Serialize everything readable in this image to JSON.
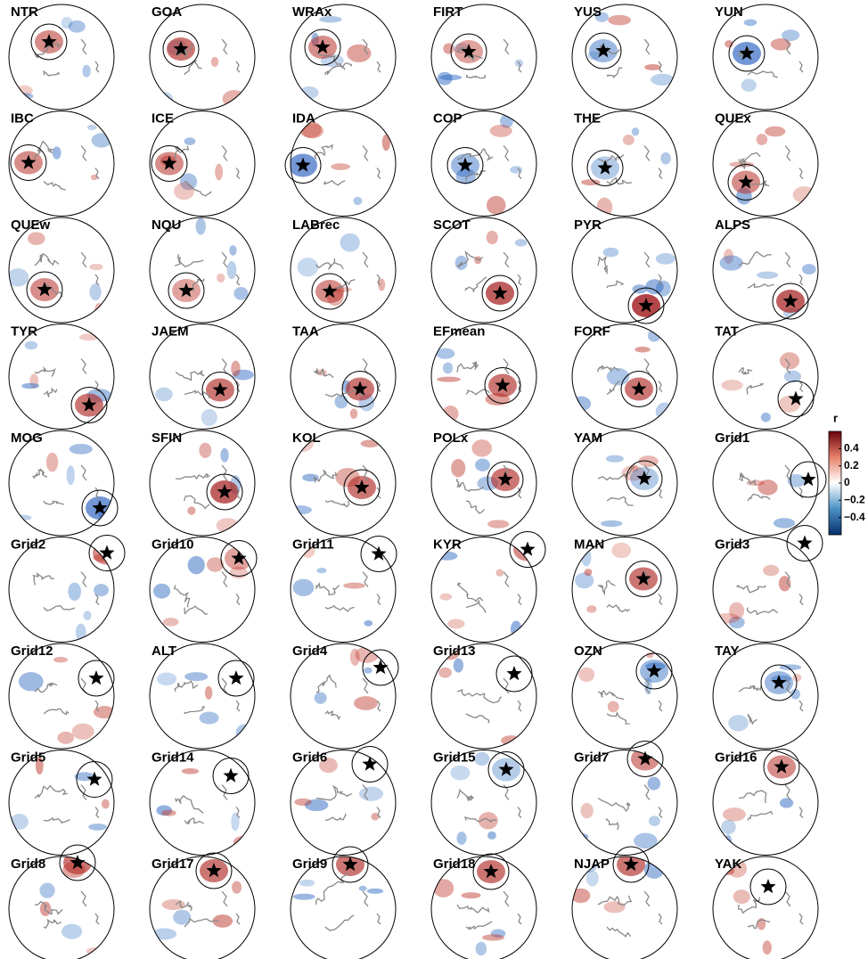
{
  "panels": [
    "NTR",
    "GOA",
    "WRAx",
    "FIRT",
    "YUS",
    "YUN",
    "IBC",
    "ICE",
    "IDA",
    "COP",
    "THE",
    "QUEx",
    "QUEw",
    "NQU",
    "LABrec",
    "SCOT",
    "PYR",
    "ALPS",
    "TYR",
    "JAEM",
    "TAA",
    "EFmean",
    "FORF",
    "TAT",
    "MOG",
    "SFIN",
    "KOL",
    "POLx",
    "YAM",
    "Grid1",
    "Grid2",
    "Grid10",
    "Grid11",
    "KYR",
    "MAN",
    "Grid3",
    "Grid12",
    "ALT",
    "Grid4",
    "Grid13",
    "OZN",
    "TAY",
    "Grid5",
    "Grid14",
    "Grid6",
    "Grid15",
    "Grid7",
    "Grid16",
    "Grid8",
    "Grid17",
    "Grid9",
    "Grid18",
    "NJAP",
    "YAK"
  ],
  "colorbar": {
    "title": "r",
    "lim": [
      -0.6,
      0.6
    ],
    "ticks": [
      0.4,
      0.2,
      0,
      {
        "value": -0.2,
        "label": "−0.2"
      },
      {
        "value": -0.4,
        "label": "−0.4"
      }
    ]
  }
}
